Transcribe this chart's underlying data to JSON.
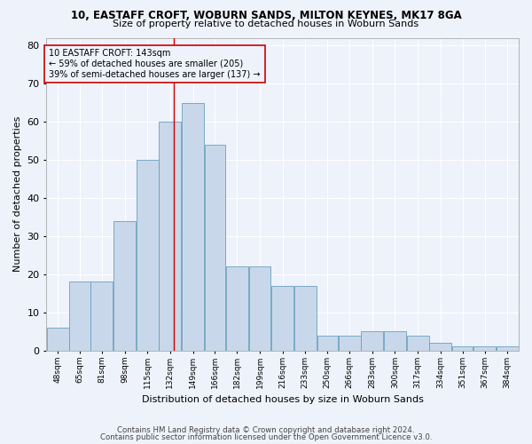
{
  "title1": "10, EASTAFF CROFT, WOBURN SANDS, MILTON KEYNES, MK17 8GA",
  "title2": "Size of property relative to detached houses in Woburn Sands",
  "xlabel": "Distribution of detached houses by size in Woburn Sands",
  "ylabel": "Number of detached properties",
  "footer1": "Contains HM Land Registry data © Crown copyright and database right 2024.",
  "footer2": "Contains public sector information licensed under the Open Government Licence v3.0.",
  "annotation_line1": "10 EASTAFF CROFT: 143sqm",
  "annotation_line2": "← 59% of detached houses are smaller (205)",
  "annotation_line3": "39% of semi-detached houses are larger (137) →",
  "bar_color": "#c8d8ea",
  "bar_edge_color": "#6a9fc0",
  "ref_line_color": "#cc0000",
  "ref_line_x": 143,
  "annotation_box_color": "#cc0000",
  "background_color": "#eef2fb",
  "grid_color": "#ffffff",
  "categories": [
    "48sqm",
    "65sqm",
    "81sqm",
    "98sqm",
    "115sqm",
    "132sqm",
    "149sqm",
    "166sqm",
    "182sqm",
    "199sqm",
    "216sqm",
    "233sqm",
    "250sqm",
    "266sqm",
    "283sqm",
    "300sqm",
    "317sqm",
    "334sqm",
    "351sqm",
    "367sqm",
    "384sqm"
  ],
  "bin_edges": [
    48,
    65,
    81,
    98,
    115,
    132,
    149,
    166,
    182,
    199,
    216,
    233,
    250,
    266,
    283,
    300,
    317,
    334,
    351,
    367,
    384
  ],
  "bar_heights": [
    6,
    18,
    18,
    34,
    50,
    60,
    65,
    54,
    22,
    22,
    17,
    17,
    4,
    4,
    5,
    5,
    4,
    2,
    1,
    1,
    1
  ],
  "ylim": [
    0,
    82
  ],
  "yticks": [
    0,
    10,
    20,
    30,
    40,
    50,
    60,
    70,
    80
  ]
}
